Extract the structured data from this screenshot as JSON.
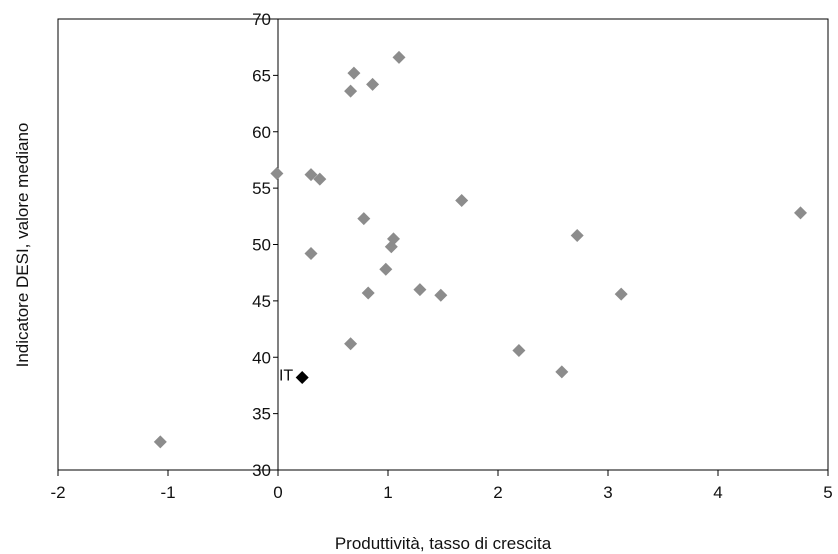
{
  "chart_data": {
    "type": "scatter",
    "title": "",
    "xlabel": "Produttività, tasso di crescita",
    "ylabel": "Indicatore DESI, valore mediano",
    "xlim": [
      -2,
      5
    ],
    "ylim": [
      30,
      70
    ],
    "xticks": [
      -2,
      -1,
      0,
      1,
      2,
      3,
      4,
      5
    ],
    "yticks": [
      30,
      35,
      40,
      45,
      50,
      55,
      60,
      65,
      70
    ],
    "grid": false,
    "legend": "none",
    "colors": {
      "points": "#8c8c8c",
      "highlight": "#000000",
      "frame": "#000000"
    },
    "series": [
      {
        "values": [
          {
            "x": -1.07,
            "y": 32.5
          },
          {
            "x": -0.01,
            "y": 56.3
          },
          {
            "x": 0.3,
            "y": 56.2
          },
          {
            "x": 0.38,
            "y": 55.8
          },
          {
            "x": 0.3,
            "y": 49.2
          },
          {
            "x": 0.66,
            "y": 63.6
          },
          {
            "x": 0.69,
            "y": 65.2
          },
          {
            "x": 0.86,
            "y": 64.2
          },
          {
            "x": 1.1,
            "y": 66.6
          },
          {
            "x": 0.78,
            "y": 52.3
          },
          {
            "x": 1.05,
            "y": 50.5
          },
          {
            "x": 1.03,
            "y": 49.8
          },
          {
            "x": 0.98,
            "y": 47.8
          },
          {
            "x": 0.82,
            "y": 45.7
          },
          {
            "x": 1.29,
            "y": 46.0
          },
          {
            "x": 1.48,
            "y": 45.5
          },
          {
            "x": 1.67,
            "y": 53.9
          },
          {
            "x": 0.66,
            "y": 41.2
          },
          {
            "x": 2.19,
            "y": 40.6
          },
          {
            "x": 2.58,
            "y": 38.7
          },
          {
            "x": 2.72,
            "y": 50.8
          },
          {
            "x": 3.12,
            "y": 45.6
          },
          {
            "x": 4.75,
            "y": 52.8
          }
        ]
      },
      {
        "values": [
          {
            "x": 0.22,
            "y": 38.2,
            "label": "IT"
          }
        ]
      }
    ]
  }
}
